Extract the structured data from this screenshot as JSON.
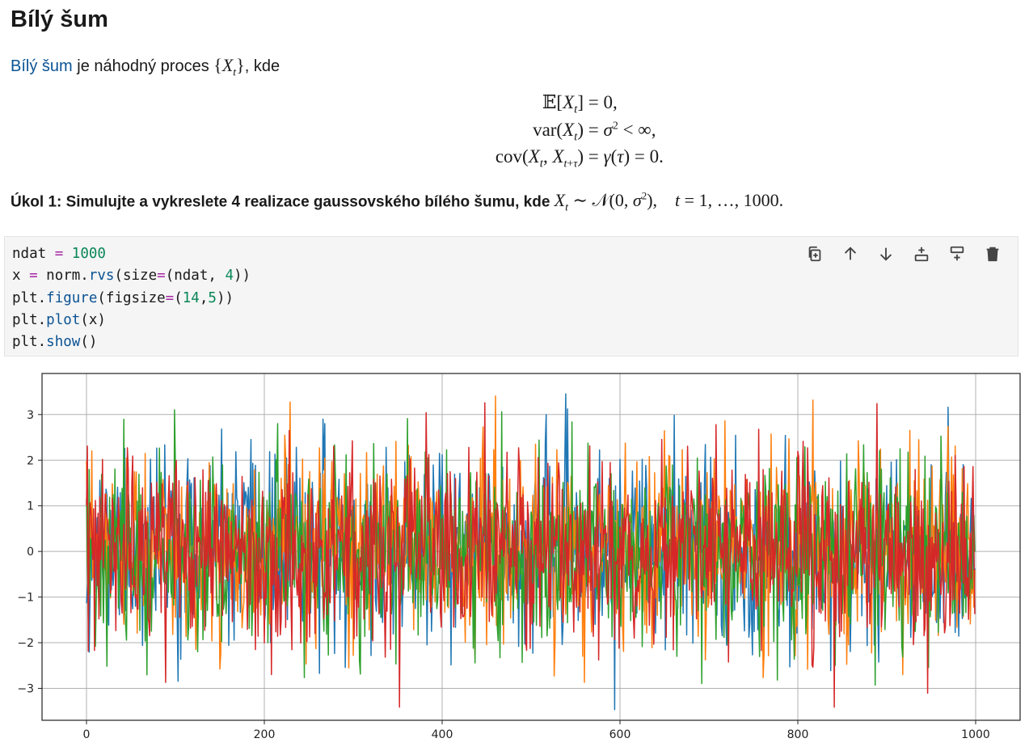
{
  "page": {
    "title": "Bílý šum",
    "intro": {
      "link_text": "Bílý šum",
      "text_before_math": " je náhodný proces ",
      "set_math": "{Xt}",
      "text_after_math": ", kde"
    },
    "equations": [
      {
        "lhs": "𝔼[Xt]",
        "rhs": "= 0,"
      },
      {
        "lhs": "var(Xt)",
        "rhs": "= σ² < ∞,"
      },
      {
        "lhs": "cov(Xt, Xt+τ)",
        "rhs": "= γ(τ) = 0."
      }
    ],
    "task": {
      "bold_text": "Úkol 1: Simulujte a vykreslete 4 realizace gaussovského bílého šumu, kde ",
      "math": "Xt ∼ 𝒩(0, σ²),    t = 1, …, 1000."
    }
  },
  "code_cell": {
    "lines": [
      "ndat = 1000",
      "x = norm.rvs(size=(ndat, 4))",
      "plt.figure(figsize=(14,5))",
      "plt.plot(x)",
      "plt.show()"
    ],
    "toolbar": [
      {
        "icon": "copy-cell-icon",
        "name": "copy-cell-button"
      },
      {
        "icon": "arrow-up-icon",
        "name": "move-up-button"
      },
      {
        "icon": "arrow-down-icon",
        "name": "move-down-button"
      },
      {
        "icon": "insert-above-icon",
        "name": "insert-above-button"
      },
      {
        "icon": "insert-below-icon",
        "name": "insert-below-button"
      },
      {
        "icon": "trash-icon",
        "name": "delete-cell-button"
      }
    ]
  },
  "chart_data": {
    "type": "line",
    "title": "",
    "xlabel": "",
    "ylabel": "",
    "xlim": [
      -50,
      1050
    ],
    "ylim": [
      -3.7,
      3.9
    ],
    "xticks": [
      0,
      200,
      400,
      600,
      800,
      1000
    ],
    "yticks": [
      -3,
      -2,
      -1,
      0,
      1,
      2,
      3
    ],
    "grid": true,
    "n_points": 1000,
    "series": [
      {
        "color": "#1f77b4",
        "mean": 0,
        "std": 1,
        "seed": 11
      },
      {
        "color": "#ff7f0e",
        "mean": 0,
        "std": 1,
        "seed": 23
      },
      {
        "color": "#2ca02c",
        "mean": 0,
        "std": 1,
        "seed": 37
      },
      {
        "color": "#d62728",
        "mean": 0,
        "std": 1,
        "seed": 53
      }
    ]
  }
}
